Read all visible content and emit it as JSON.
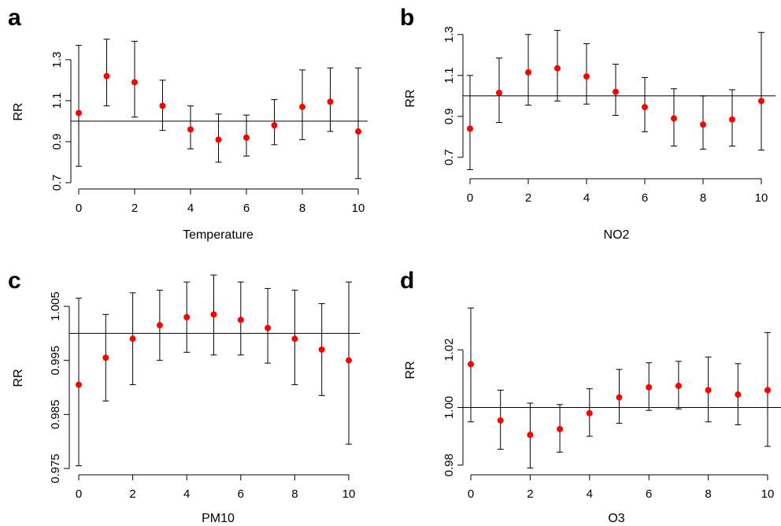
{
  "chart_data": [
    {
      "type": "scatter",
      "panel_label": "a",
      "xlabel": "Temperature",
      "ylabel": "RR",
      "x_ticks": [
        0,
        2,
        4,
        6,
        8,
        10
      ],
      "y_ticks": [
        "0.7",
        "0.9",
        "1.1",
        "1.3"
      ],
      "ylim": [
        0.7,
        1.38
      ],
      "reference_line": 1.0,
      "point_color": "#ff0000",
      "series": [
        {
          "x": [
            0,
            1,
            2,
            3,
            4,
            5,
            6,
            7,
            8,
            9,
            10
          ],
          "y": [
            1.04,
            1.22,
            1.19,
            1.075,
            0.96,
            0.91,
            0.92,
            0.98,
            1.07,
            1.095,
            0.95
          ],
          "lower": [
            0.78,
            1.075,
            1.02,
            0.955,
            0.865,
            0.8,
            0.83,
            0.885,
            0.91,
            0.95,
            0.72
          ],
          "upper": [
            1.37,
            1.4,
            1.39,
            1.2,
            1.075,
            1.035,
            1.03,
            1.105,
            1.25,
            1.26,
            1.26
          ]
        }
      ]
    },
    {
      "type": "scatter",
      "panel_label": "b",
      "xlabel": "NO2",
      "ylabel": "RR",
      "x_ticks": [
        0,
        2,
        4,
        6,
        8,
        10
      ],
      "y_ticks": [
        "0.7",
        "0.9",
        "1.1",
        "1.3"
      ],
      "ylim": [
        0.63,
        1.33
      ],
      "reference_line": 1.0,
      "point_color": "#ff0000",
      "series": [
        {
          "x": [
            0,
            1,
            2,
            3,
            4,
            5,
            6,
            7,
            8,
            9,
            10
          ],
          "y": [
            0.84,
            1.015,
            1.115,
            1.135,
            1.095,
            1.02,
            0.945,
            0.89,
            0.86,
            0.885,
            0.975
          ],
          "lower": [
            0.64,
            0.87,
            0.955,
            0.975,
            0.96,
            0.905,
            0.825,
            0.755,
            0.74,
            0.755,
            0.735
          ],
          "upper": [
            1.1,
            1.185,
            1.3,
            1.32,
            1.255,
            1.155,
            1.09,
            1.035,
            1.0,
            1.03,
            1.31
          ]
        }
      ]
    },
    {
      "type": "scatter",
      "panel_label": "c",
      "xlabel": "PM10",
      "ylabel": "RR",
      "x_ticks": [
        0,
        2,
        4,
        6,
        8,
        10
      ],
      "y_ticks": [
        "0.975",
        "0.985",
        "0.995",
        "1.005"
      ],
      "ylim": [
        0.975,
        1.0085
      ],
      "reference_line": 1.0,
      "point_color": "#ff0000",
      "series": [
        {
          "x": [
            0,
            1,
            2,
            3,
            4,
            5,
            6,
            7,
            8,
            9,
            10
          ],
          "y": [
            0.9905,
            0.9955,
            0.999,
            1.0015,
            1.003,
            1.0035,
            1.0025,
            1.001,
            0.999,
            0.997,
            0.995
          ],
          "lower": [
            0.9755,
            0.9875,
            0.9905,
            0.995,
            0.9965,
            0.996,
            0.996,
            0.9945,
            0.9905,
            0.9885,
            0.9795
          ],
          "upper": [
            1.0065,
            1.0035,
            1.0075,
            1.008,
            1.0095,
            1.0108,
            1.0095,
            1.0083,
            1.008,
            1.0055,
            1.0095
          ]
        }
      ]
    },
    {
      "type": "scatter",
      "panel_label": "d",
      "xlabel": "O3",
      "ylabel": "RR",
      "x_ticks": [
        0,
        2,
        4,
        6,
        8,
        10
      ],
      "y_ticks": [
        "0.98",
        "1.00",
        "1.02"
      ],
      "ylim": [
        0.978,
        1.034
      ],
      "reference_line": 1.0,
      "point_color": "#ff0000",
      "series": [
        {
          "x": [
            0,
            1,
            2,
            3,
            4,
            5,
            6,
            7,
            8,
            9,
            10
          ],
          "y": [
            1.015,
            0.9955,
            0.9905,
            0.9925,
            0.998,
            1.0035,
            1.007,
            1.0075,
            1.006,
            1.0045,
            1.006
          ],
          "lower": [
            0.995,
            0.9855,
            0.979,
            0.9845,
            0.99,
            0.9945,
            0.999,
            0.9995,
            0.995,
            0.994,
            0.9865
          ],
          "upper": [
            1.0345,
            1.006,
            1.0015,
            1.001,
            1.0065,
            1.0132,
            1.0155,
            1.016,
            1.0175,
            1.0152,
            1.026
          ]
        }
      ]
    }
  ]
}
